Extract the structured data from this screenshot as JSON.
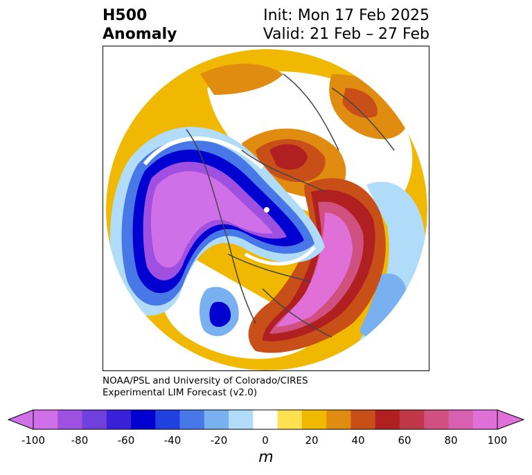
{
  "header": {
    "title_line1": "H500",
    "title_line2": "Anomaly",
    "init": "Init: Mon 17 Feb 2025",
    "valid": "Valid: 21 Feb – 27 Feb"
  },
  "credit": {
    "line1": "NOAA/PSL and University of Colorado/CIRES",
    "line2": "Experimental LIM Forecast (v2.0)"
  },
  "colorbar": {
    "unit": "m",
    "tick_labels": [
      "-100",
      "-80",
      "-60",
      "-40",
      "-20",
      "0",
      "20",
      "40",
      "60",
      "80",
      "100"
    ],
    "levels": [
      -100,
      -90,
      -80,
      -70,
      -60,
      -50,
      -40,
      -30,
      -20,
      -10,
      10,
      20,
      30,
      40,
      50,
      60,
      70,
      80,
      90,
      100
    ],
    "colors": [
      "#d070e8",
      "#a050e0",
      "#7040dc",
      "#3a20d8",
      "#0000d0",
      "#2040e0",
      "#4878e8",
      "#78b0f0",
      "#b0dcfa",
      "#ffffff",
      "#ffe050",
      "#f0b800",
      "#e08c10",
      "#c85018",
      "#b02020",
      "#c03848",
      "#d05080",
      "#d860b0",
      "#e070d8"
    ],
    "extend_min_color": "#d070e8",
    "extend_max_color": "#e070d8"
  },
  "map": {
    "projection": "north-polar-stereographic",
    "field": "500 hPa geopotential height anomaly"
  }
}
